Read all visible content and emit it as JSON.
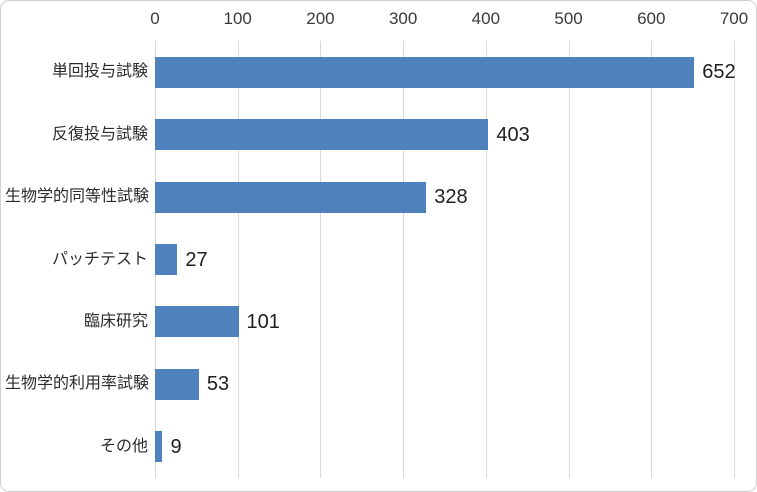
{
  "chart": {
    "background_color": "#ffffff",
    "frame_border_color": "#d0d0d0"
  },
  "chart_data": {
    "type": "bar",
    "orientation": "horizontal",
    "title": "",
    "xlabel": "",
    "ylabel": "",
    "categories": [
      "単回投与試験",
      "反復投与試験",
      "生物学的同等性試験",
      "パッチテスト",
      "臨床研究",
      "生物学的利用率試験",
      "その他"
    ],
    "values": [
      652,
      403,
      328,
      27,
      101,
      53,
      9
    ],
    "data_labels": [
      "652",
      "403",
      "328",
      "27",
      "101",
      "53",
      "9"
    ],
    "xlim": [
      0,
      700
    ],
    "x_ticks": [
      "0",
      "100",
      "200",
      "300",
      "400",
      "500",
      "600",
      "700"
    ],
    "x_tick_values": [
      0,
      100,
      200,
      300,
      400,
      500,
      600,
      700
    ],
    "axis_position": "top",
    "grid": "vertical",
    "legend": "none",
    "bar_color": "#4f81bd",
    "gridline_color": "#d9d9d9",
    "tick_label_color": "#3a3a3a",
    "category_label_color": "#2b2b2b",
    "data_label_color": "#1f1f1f"
  }
}
